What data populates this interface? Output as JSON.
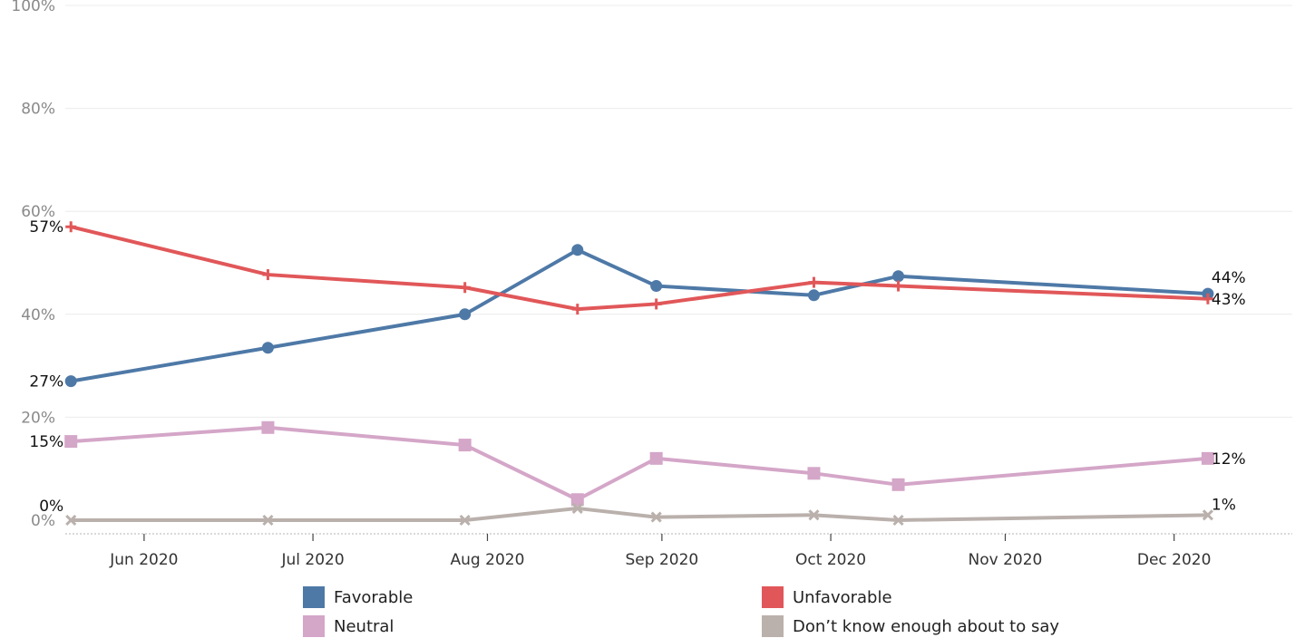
{
  "chart_data": {
    "type": "line",
    "ylim": [
      0,
      100
    ],
    "yticks": [
      {
        "value": 0,
        "label": "0%"
      },
      {
        "value": 20,
        "label": "20%"
      },
      {
        "value": 40,
        "label": "40%"
      },
      {
        "value": 60,
        "label": "60%"
      },
      {
        "value": 80,
        "label": "80%"
      },
      {
        "value": 100,
        "label": "100%"
      }
    ],
    "xlim": [
      "2020-05-18",
      "2020-12-22"
    ],
    "xticks": [
      {
        "date": "2020-06-01",
        "label": "Jun 2020"
      },
      {
        "date": "2020-07-01",
        "label": "Jul 2020"
      },
      {
        "date": "2020-08-01",
        "label": "Aug 2020"
      },
      {
        "date": "2020-09-01",
        "label": "Sep 2020"
      },
      {
        "date": "2020-10-01",
        "label": "Oct 2020"
      },
      {
        "date": "2020-11-01",
        "label": "Nov 2020"
      },
      {
        "date": "2020-12-01",
        "label": "Dec 2020"
      }
    ],
    "x": [
      "2020-05-19",
      "2020-06-23",
      "2020-07-28",
      "2020-08-17",
      "2020-08-31",
      "2020-09-28",
      "2020-10-13",
      "2020-12-07"
    ],
    "grid": true,
    "legend_position": "bottom",
    "series": [
      {
        "name": "Favorable",
        "color": "#4e79a7",
        "marker": "circle",
        "values": [
          27,
          33.5,
          40,
          52.5,
          45.5,
          43.7,
          47.4,
          44
        ],
        "start_label": "27%",
        "end_label": "44%"
      },
      {
        "name": "Unfavorable",
        "color": "#e15759",
        "marker": "plus",
        "values": [
          57,
          47.7,
          45.2,
          41,
          42,
          46.2,
          45.5,
          43
        ],
        "start_label": "57%",
        "end_label": "43%"
      },
      {
        "name": "Neutral",
        "color": "#d4a6c8",
        "marker": "square",
        "values": [
          15.3,
          18,
          14.6,
          4,
          12,
          9.1,
          6.9,
          12
        ],
        "start_label": "15%",
        "end_label": "12%"
      },
      {
        "name": "Don’t know enough about to say",
        "color": "#bab0ac",
        "marker": "x",
        "values": [
          0,
          0,
          0,
          2.3,
          0.6,
          1,
          0,
          1
        ],
        "start_label": "0%",
        "end_label": "1%"
      }
    ]
  }
}
